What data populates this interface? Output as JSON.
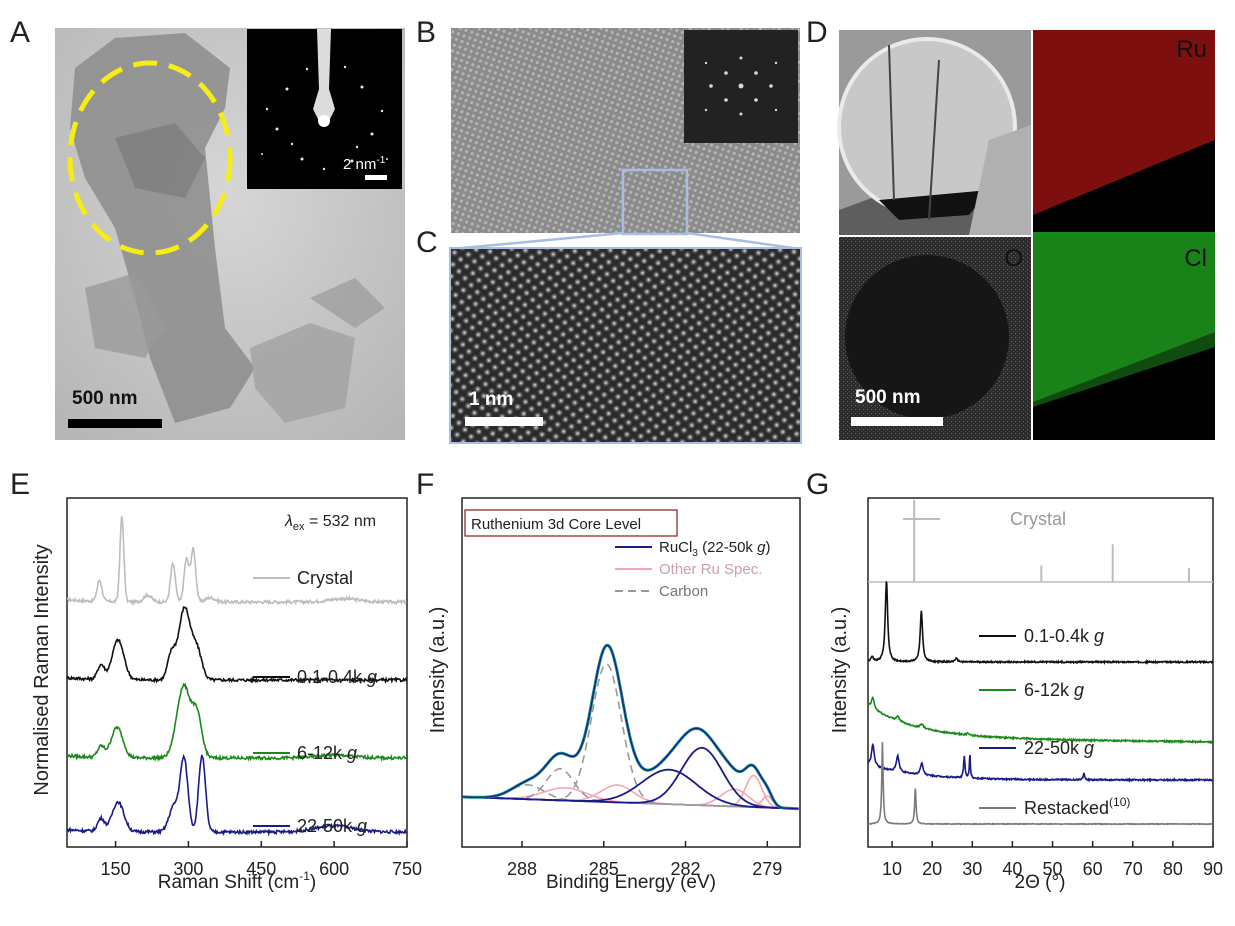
{
  "panels": {
    "A": {
      "label": "A",
      "scale_bar": "500 nm",
      "inset_scale": "2 nm",
      "inset_scale_sup": "-1"
    },
    "B": {
      "label": "B"
    },
    "C": {
      "label": "C",
      "scale_bar": "1 nm"
    },
    "D": {
      "label": "D",
      "scale_bar": "500 nm",
      "maps": [
        {
          "element": "Ru",
          "color": "#ff2a2a"
        },
        {
          "element": "O",
          "color": "#bdbdbd"
        },
        {
          "element": "Cl",
          "color": "#2aff2a"
        }
      ]
    },
    "E": {
      "label": "E"
    },
    "F": {
      "label": "F"
    },
    "G": {
      "label": "G"
    }
  },
  "chart_data": [
    {
      "id": "E",
      "type": "line",
      "xlabel": "Raman Shift (cm",
      "xlabel_sup": "-1",
      "xlabel_end": ")",
      "ylabel": "Normalised Raman Intensity",
      "annotation": "= 532 nm",
      "annotation_sym": "λ",
      "annotation_sub": "ex",
      "xlim": [
        50,
        750
      ],
      "xticks": [
        150,
        300,
        450,
        600,
        750
      ],
      "series": [
        {
          "name": "Crystal",
          "color": "#bdbdbd",
          "peaks": [
            [
              117,
              0.25,
              5
            ],
            [
              163,
              1.0,
              4
            ],
            [
              216,
              0.08,
              8
            ],
            [
              268,
              0.45,
              5
            ],
            [
              296,
              0.5,
              5
            ],
            [
              310,
              0.62,
              5
            ],
            [
              345,
              0.05,
              10
            ],
            [
              620,
              0.04,
              30
            ]
          ]
        },
        {
          "name": "0.1-0.4k",
          "suffix": "g",
          "color": "#111111",
          "peaks": [
            [
              120,
              0.2,
              7
            ],
            [
              155,
              0.55,
              12
            ],
            [
              265,
              0.35,
              8
            ],
            [
              292,
              1.0,
              12
            ],
            [
              318,
              0.4,
              10
            ]
          ]
        },
        {
          "name": "6-12k",
          "suffix": "g",
          "color": "#1a8a1a",
          "peaks": [
            [
              120,
              0.15,
              7
            ],
            [
              153,
              0.42,
              12
            ],
            [
              290,
              1.0,
              14
            ],
            [
              318,
              0.55,
              10
            ],
            [
              600,
              0.04,
              40
            ]
          ]
        },
        {
          "name": "22-50k",
          "suffix": "g",
          "color": "#1a1a8a",
          "peaks": [
            [
              120,
              0.15,
              7
            ],
            [
              155,
              0.35,
              12
            ],
            [
              270,
              0.3,
              10
            ],
            [
              291,
              0.85,
              8
            ],
            [
              328,
              0.9,
              7
            ],
            [
              600,
              0.07,
              40
            ]
          ]
        }
      ]
    },
    {
      "id": "F",
      "type": "line",
      "title": "Ruthenium 3d Core Level",
      "xlabel": "Binding Energy (eV)",
      "ylabel": "Intensity (a.u.)",
      "xlim": [
        290.2,
        277.8
      ],
      "xticks": [
        288,
        285,
        282,
        279
      ],
      "legend": [
        {
          "name": "RuCl",
          "sub": "3",
          "tail": " (22-50k ",
          "italic": "g",
          "end": ")",
          "color": "#1a1a8a",
          "dash": false
        },
        {
          "name": "Other Ru Spec.",
          "color": "#f4a6b4",
          "dash": false
        },
        {
          "name": "Carbon",
          "color": "#9a9a9a",
          "dash": true
        }
      ],
      "components": {
        "ru": [
          [
            282.6,
            0.6,
            1.0
          ],
          [
            281.4,
            1.0,
            0.75
          ]
        ],
        "other": [
          [
            286.4,
            0.22,
            0.8
          ],
          [
            284.5,
            0.3,
            0.6
          ],
          [
            280.2,
            0.3,
            0.5
          ],
          [
            279.5,
            0.55,
            0.3
          ],
          [
            279.0,
            0.2,
            0.2
          ]
        ],
        "carbon": [
          [
            284.9,
            2.4,
            0.55
          ],
          [
            286.6,
            0.55,
            0.5
          ],
          [
            287.8,
            0.25,
            0.6
          ]
        ]
      }
    },
    {
      "id": "G",
      "type": "line",
      "xlabel": "2Θ (°)",
      "ylabel": "Intensity (a.u.)",
      "xlim": [
        4,
        90
      ],
      "xticks": [
        10,
        20,
        30,
        40,
        50,
        60,
        70,
        80,
        90
      ],
      "series": [
        {
          "name": "Crystal",
          "color": "#bdbdbd",
          "sticks": [
            [
              15.5,
              1.0
            ],
            [
              47.2,
              0.2
            ],
            [
              65.0,
              0.46
            ],
            [
              84.0,
              0.17
            ]
          ]
        },
        {
          "name": "0.1-0.4k",
          "suffix": "g",
          "color": "#111111",
          "peaks": [
            [
              8.6,
              1.0,
              0.35
            ],
            [
              17.3,
              0.62,
              0.35
            ],
            [
              26.0,
              0.04,
              0.4
            ],
            [
              5.0,
              0.06,
              0.4
            ]
          ]
        },
        {
          "name": "6-12k",
          "suffix": "g",
          "color": "#1a8a1a",
          "peaks": [
            [
              5.2,
              0.5,
              0.4
            ],
            [
              11.4,
              0.22,
              0.4
            ],
            [
              17.4,
              0.2,
              0.4
            ],
            [
              29.0,
              0.1,
              0.3
            ]
          ]
        },
        {
          "name": "22-50k",
          "suffix": "g",
          "color": "#1a1a8a",
          "peaks": [
            [
              5.2,
              0.55,
              0.4
            ],
            [
              11.4,
              0.4,
              0.4
            ],
            [
              17.4,
              0.3,
              0.4
            ],
            [
              28.0,
              0.55,
              0.2
            ],
            [
              29.4,
              0.6,
              0.15
            ],
            [
              57.8,
              0.18,
              0.2
            ]
          ]
        },
        {
          "name": "Restacked",
          "sup": "(10)",
          "color": "#7a7a7a",
          "peaks": [
            [
              7.6,
              1.0,
              0.2
            ],
            [
              15.8,
              0.45,
              0.2
            ]
          ]
        }
      ]
    }
  ]
}
